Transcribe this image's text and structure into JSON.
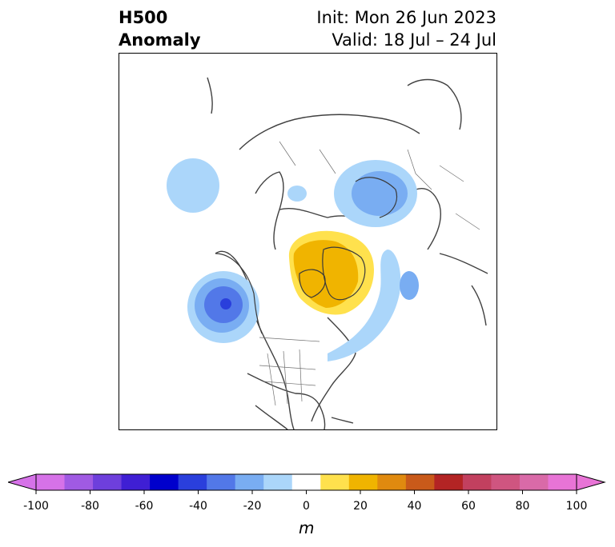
{
  "title": {
    "line1": "H500",
    "line2": "Anomaly"
  },
  "init": "Init: Mon 26 Jun 2023",
  "valid": "Valid: 18 Jul – 24 Jul",
  "colorbar": {
    "label": "m",
    "ticks": [
      "-100",
      "-80",
      "-60",
      "-40",
      "-20",
      "0",
      "20",
      "40",
      "60",
      "80",
      "100"
    ],
    "colors": [
      "#d672e8",
      "#a05ae3",
      "#6e3fdc",
      "#3f1fd4",
      "#0000cc",
      "#2a3fdc",
      "#5278e8",
      "#79adf2",
      "#abd6fa",
      "#ffffff",
      "#ffe14d",
      "#f0b400",
      "#e08a0f",
      "#c95a1a",
      "#b32424",
      "#c2405f",
      "#cf5580",
      "#d96aa8",
      "#e874d6"
    ],
    "under_color": "#d672e8",
    "over_color": "#e874d6"
  }
}
